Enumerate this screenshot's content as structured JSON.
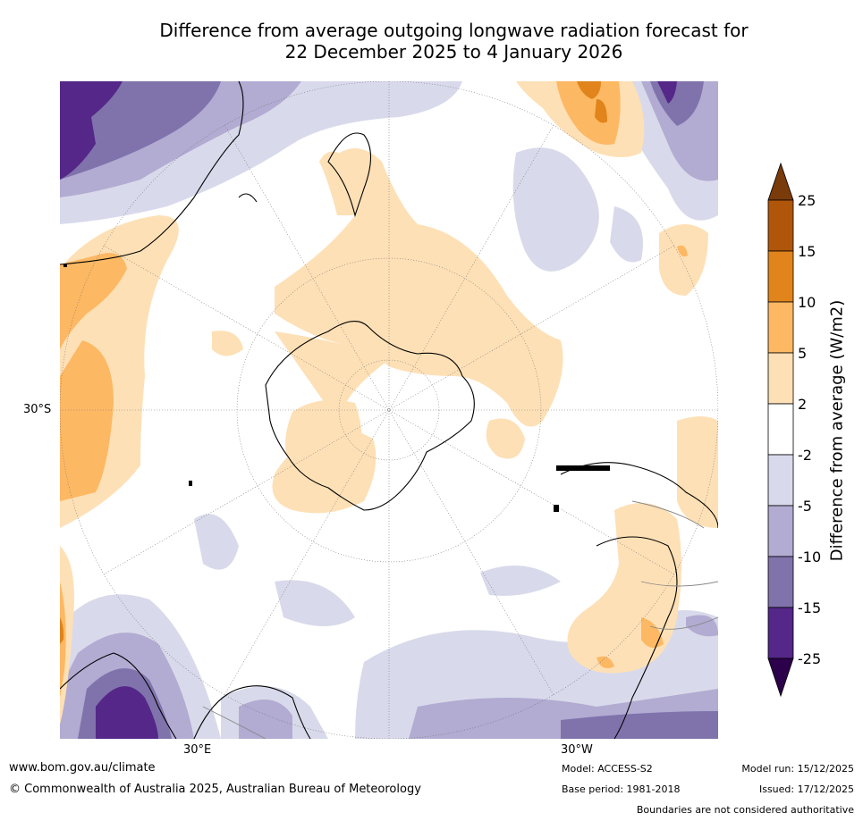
{
  "title_line1": "Difference from average outgoing longwave radiation forecast for",
  "title_line2": "22 December 2025 to 4 January 2026",
  "axis_labels": {
    "lat": "30°S",
    "lon_east": "30°E",
    "lon_west": "30°W"
  },
  "colorbar": {
    "title": "Difference from average (W/m2)",
    "ticks": [
      "25",
      "15",
      "10",
      "5",
      "2",
      "-2",
      "-5",
      "-10",
      "-15",
      "-25"
    ],
    "colors": {
      "over": "#7a3b0a",
      "b15_25": "#b0560a",
      "b10_15": "#e0841b",
      "b5_10": "#fdb863",
      "b2_5": "#fee0b6",
      "neutral": "#ffffff",
      "n2_5": "#d8daeb",
      "n5_10": "#b2abd2",
      "n10_15": "#8073ac",
      "n15_25": "#542788",
      "under": "#2d004b"
    }
  },
  "footer": {
    "website": "www.bom.gov.au/climate",
    "copyright": "© Commonwealth of Australia 2025, Australian Bureau of Meteorology",
    "model": "Model: ACCESS-S2",
    "base_period": "Base period: 1981-2018",
    "model_run": "Model run: 15/12/2025",
    "issued": "Issued: 17/12/2025",
    "disclaimer": "Boundaries are not considered authoritative"
  }
}
